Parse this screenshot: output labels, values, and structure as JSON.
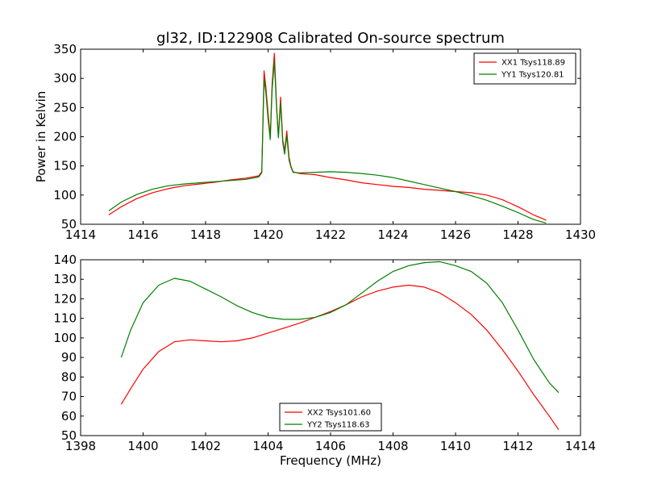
{
  "figure_title": "gl32, ID:122908 Calibrated On-source spectrum",
  "colors": {
    "xx": "#ff0000",
    "yy": "#008000",
    "axes": "#000000",
    "background": "#ffffff"
  },
  "chart_data": [
    {
      "type": "line",
      "title": "gl32, ID:122908 Calibrated On-source spectrum",
      "xlabel": "",
      "ylabel": "Power in Kelvin",
      "xlim": [
        1414,
        1430
      ],
      "ylim": [
        50,
        350
      ],
      "xticks": [
        1414,
        1416,
        1418,
        1420,
        1422,
        1424,
        1426,
        1428,
        1430
      ],
      "yticks": [
        50,
        100,
        150,
        200,
        250,
        300,
        350
      ],
      "grid": false,
      "legend_position": "top-right",
      "series": [
        {
          "name": "XX1 Tsys118.89",
          "color": "#ff0000",
          "x": [
            1414.9,
            1415.3,
            1415.8,
            1416.3,
            1416.8,
            1417.3,
            1417.8,
            1418.3,
            1418.8,
            1419.3,
            1419.7,
            1419.8,
            1419.87,
            1419.93,
            1420.0,
            1420.07,
            1420.13,
            1420.2,
            1420.27,
            1420.33,
            1420.4,
            1420.47,
            1420.53,
            1420.6,
            1420.67,
            1420.73,
            1420.8,
            1421.0,
            1421.5,
            1422.0,
            1422.5,
            1423.0,
            1423.5,
            1424.0,
            1424.5,
            1425.0,
            1425.5,
            1426.0,
            1426.5,
            1427.0,
            1427.5,
            1428.0,
            1428.5,
            1428.9
          ],
          "values": [
            66,
            80,
            94,
            104,
            111,
            116,
            119,
            122,
            126,
            129,
            133,
            140,
            313,
            285,
            240,
            200,
            290,
            343,
            255,
            200,
            268,
            195,
            175,
            210,
            165,
            150,
            140,
            137,
            135,
            130,
            126,
            121,
            118,
            115,
            113,
            110,
            108,
            106,
            104,
            100,
            92,
            80,
            66,
            57
          ]
        },
        {
          "name": "YY1 Tsys120.81",
          "color": "#008000",
          "x": [
            1414.9,
            1415.3,
            1415.8,
            1416.3,
            1416.8,
            1417.3,
            1417.8,
            1418.3,
            1418.8,
            1419.3,
            1419.7,
            1419.8,
            1419.87,
            1419.93,
            1420.0,
            1420.07,
            1420.13,
            1420.2,
            1420.27,
            1420.33,
            1420.4,
            1420.47,
            1420.53,
            1420.6,
            1420.67,
            1420.73,
            1420.8,
            1421.0,
            1421.5,
            1422.0,
            1422.5,
            1423.0,
            1423.5,
            1424.0,
            1424.5,
            1425.0,
            1425.5,
            1426.0,
            1426.5,
            1427.0,
            1427.5,
            1428.0,
            1428.5,
            1428.9
          ],
          "values": [
            73,
            88,
            101,
            110,
            116,
            119,
            121,
            123,
            125,
            127,
            131,
            138,
            300,
            275,
            230,
            195,
            280,
            330,
            250,
            198,
            258,
            190,
            170,
            202,
            160,
            148,
            139,
            138,
            139,
            140,
            139,
            137,
            134,
            130,
            124,
            118,
            112,
            106,
            99,
            91,
            81,
            70,
            58,
            52
          ]
        }
      ]
    },
    {
      "type": "line",
      "title": "",
      "xlabel": "Frequency (MHz)",
      "ylabel": "",
      "xlim": [
        1398,
        1414
      ],
      "ylim": [
        50,
        140
      ],
      "xticks": [
        1398,
        1400,
        1402,
        1404,
        1406,
        1408,
        1410,
        1412,
        1414
      ],
      "yticks": [
        50,
        60,
        70,
        80,
        90,
        100,
        110,
        120,
        130,
        140
      ],
      "grid": false,
      "legend_position": "bottom-center",
      "series": [
        {
          "name": "XX2 Tsys101.60",
          "color": "#ff0000",
          "x": [
            1399.3,
            1399.6,
            1400.0,
            1400.5,
            1401.0,
            1401.5,
            1402.0,
            1402.5,
            1403.0,
            1403.5,
            1404.0,
            1404.5,
            1405.0,
            1405.5,
            1406.0,
            1406.5,
            1407.0,
            1407.5,
            1408.0,
            1408.5,
            1409.0,
            1409.5,
            1410.0,
            1410.5,
            1411.0,
            1411.5,
            1412.0,
            1412.5,
            1413.0,
            1413.3
          ],
          "values": [
            66,
            74,
            84,
            93,
            98,
            99,
            98.5,
            98,
            98.5,
            100,
            102.5,
            105,
            107.5,
            110.5,
            113.5,
            117,
            121,
            124,
            126,
            127,
            126,
            123,
            118,
            112,
            104,
            94,
            83,
            71,
            60,
            53
          ]
        },
        {
          "name": "YY2 Tsys118.63",
          "color": "#008000",
          "x": [
            1399.3,
            1399.6,
            1400.0,
            1400.5,
            1401.0,
            1401.5,
            1402.0,
            1402.5,
            1403.0,
            1403.5,
            1404.0,
            1404.5,
            1405.0,
            1405.5,
            1406.0,
            1406.5,
            1407.0,
            1407.5,
            1408.0,
            1408.5,
            1409.0,
            1409.5,
            1410.0,
            1410.5,
            1411.0,
            1411.5,
            1412.0,
            1412.5,
            1413.0,
            1413.3
          ],
          "values": [
            90,
            104,
            118,
            127,
            130.5,
            129,
            125,
            121,
            116.5,
            113,
            110.5,
            109.5,
            109.5,
            110.5,
            113,
            117,
            123,
            129,
            134,
            137,
            138.5,
            139,
            137,
            134,
            128,
            118,
            104,
            89,
            77,
            72
          ]
        }
      ]
    }
  ]
}
